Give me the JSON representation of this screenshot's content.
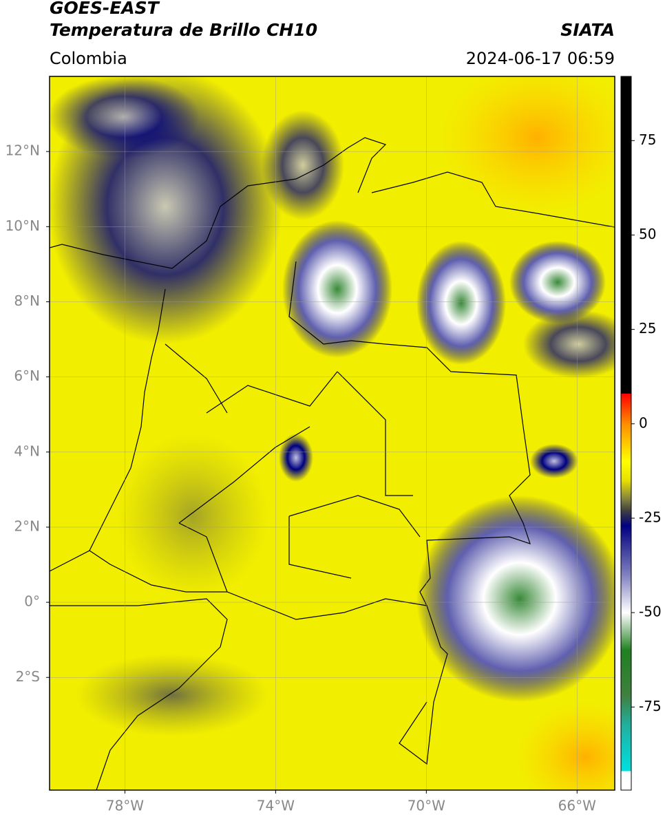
{
  "header": {
    "title": "GOES-EAST",
    "subtitle": "Temperatura de Brillo CH10",
    "source": "SIATA",
    "region": "Colombia",
    "datetime": "2024-06-17 06:59"
  },
  "map": {
    "xlim": [
      -80,
      -65
    ],
    "ylim": [
      -5,
      14
    ],
    "xticks": [
      {
        "value": -78,
        "label": "78°W"
      },
      {
        "value": -74,
        "label": "74°W"
      },
      {
        "value": -70,
        "label": "70°W"
      },
      {
        "value": -66,
        "label": "66°W"
      }
    ],
    "yticks": [
      {
        "value": 12,
        "label": "12°N"
      },
      {
        "value": 10,
        "label": "10°N"
      },
      {
        "value": 8,
        "label": "8°N"
      },
      {
        "value": 6,
        "label": "6°N"
      },
      {
        "value": 4,
        "label": "4°N"
      },
      {
        "value": 2,
        "label": "2°N"
      },
      {
        "value": 0,
        "label": "0°"
      },
      {
        "value": -2,
        "label": "2°S"
      }
    ],
    "grid": true
  },
  "colorbar": {
    "lim": [
      -97,
      92
    ],
    "ticks": [
      75,
      50,
      25,
      0,
      -25,
      -50,
      -75
    ],
    "stops": [
      [
        92,
        "#000000"
      ],
      [
        8,
        "#000000"
      ],
      [
        8,
        "#ff0000"
      ],
      [
        0,
        "#ff8c00"
      ],
      [
        -10,
        "#ffff00"
      ],
      [
        -15,
        "#e8e000"
      ],
      [
        -20,
        "#808040"
      ],
      [
        -23,
        "#404040"
      ],
      [
        -27,
        "#000080"
      ],
      [
        -40,
        "#8080c0"
      ],
      [
        -50,
        "#ffffff"
      ],
      [
        -60,
        "#208020"
      ],
      [
        -72,
        "#408040"
      ],
      [
        -80,
        "#20b0a0"
      ],
      [
        -92,
        "#00e0e0"
      ],
      [
        -92,
        "#ffffff"
      ],
      [
        -97,
        "#ffffff"
      ]
    ]
  }
}
